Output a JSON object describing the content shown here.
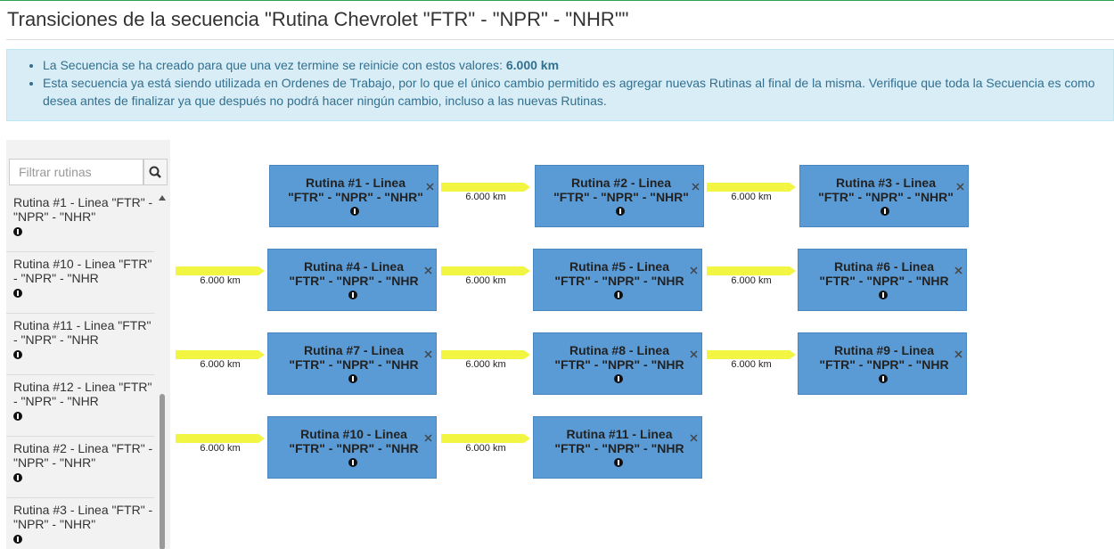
{
  "header": {
    "title": "Transiciones de la secuencia \"Rutina Chevrolet \"FTR\" - \"NPR\" - \"NHR\"\""
  },
  "alert": {
    "items": [
      {
        "text": "La Secuencia se ha creado para que una vez termine se reinicie con estos valores: ",
        "emphasis": "6.000 km"
      },
      {
        "text": "Esta secuencia ya está siendo utilizada en Ordenes de Trabajo, por lo que el único cambio permitido es agregar nuevas Rutinas al final de la misma. Verifique que toda la Secuencia es como desea antes de finalizar ya que después no podrá hacer ningún cambio, incluso a las nuevas Rutinas."
      }
    ]
  },
  "sidebar": {
    "search_placeholder": "Filtrar rutinas",
    "items": [
      "Rutina #1 - Linea \"FTR\" - \"NPR\" - \"NHR\"",
      "Rutina #10 - Linea \"FTR\" - \"NPR\" - \"NHR",
      "Rutina #11 - Linea \"FTR\" - \"NPR\" - \"NHR",
      "Rutina #12 - Linea \"FTR\" - \"NPR\" - \"NHR",
      "Rutina #2 - Linea \"FTR\" - \"NPR\" - \"NHR\"",
      "Rutina #3 - Linea \"FTR\" - \"NPR\" - \"NHR\""
    ]
  },
  "nodes": [
    "Rutina #1 - Linea \"FTR\" - \"NPR\" - \"NHR\"",
    "Rutina #2 - Linea \"FTR\" - \"NPR\" - \"NHR\"",
    "Rutina #3 - Linea \"FTR\" - \"NPR\" - \"NHR\"",
    "Rutina #4 - Linea \"FTR\" - \"NPR\" - \"NHR",
    "Rutina #5 - Linea \"FTR\" - \"NPR\" - \"NHR",
    "Rutina #6 - Linea \"FTR\" - \"NPR\" - \"NHR",
    "Rutina #7 - Linea \"FTR\" - \"NPR\" - \"NHR",
    "Rutina #8 - Linea \"FTR\" - \"NPR\" - \"NHR",
    "Rutina #9 - Linea \"FTR\" - \"NPR\" - \"NHR",
    "Rutina #10 - Linea \"FTR\" - \"NPR\" - \"NHR",
    "Rutina #11 - Linea \"FTR\" - \"NPR\" - \"NHR"
  ],
  "transitions": [
    "6.000 km",
    "6.000 km",
    "6.000 km",
    "6.000 km",
    "6.000 km",
    "6.000 km",
    "6.000 km",
    "6.000 km",
    "6.000 km",
    "6.000 km"
  ]
}
